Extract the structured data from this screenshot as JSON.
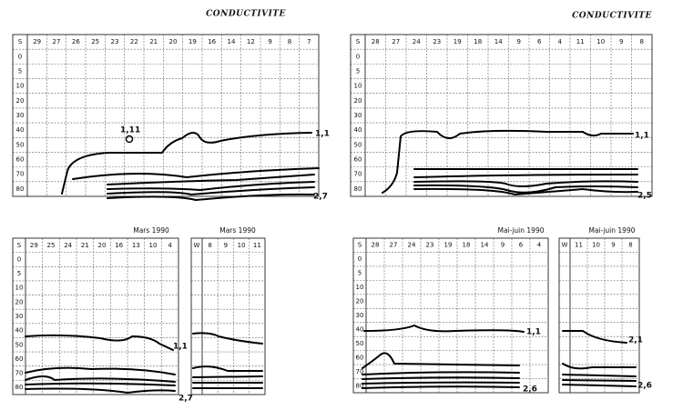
{
  "titles": [
    "CONDUCTIVITE",
    "CONDUCTIVITE"
  ],
  "panels": [
    {
      "header": null,
      "y_labels": [
        "S",
        "0",
        "5",
        "10",
        "20",
        "30",
        "40",
        "50",
        "60",
        "70",
        "80"
      ],
      "x_labels": [
        "29",
        "27",
        "26",
        "25",
        "23",
        "22",
        "21",
        "20",
        "19",
        "16",
        "14",
        "12",
        "9",
        "8",
        "7"
      ],
      "curve_labels": [
        "1,11",
        "1,1",
        "2,7"
      ]
    },
    {
      "header": null,
      "y_labels": [
        "S",
        "0",
        "5",
        "10",
        "20",
        "30",
        "40",
        "50",
        "60",
        "70",
        "80"
      ],
      "x_labels": [
        "28",
        "27",
        "24",
        "23",
        "19",
        "18",
        "14",
        "9",
        "6",
        "4",
        "11",
        "10",
        "9",
        "8"
      ],
      "curve_labels": [
        "1,1",
        "2,5"
      ]
    },
    {
      "header": "Mars 1990",
      "y_labels": [
        "S",
        "0",
        "5",
        "10",
        "20",
        "30",
        "40",
        "50",
        "60",
        "70",
        "80"
      ],
      "x_labels": [
        "29",
        "25",
        "24",
        "21",
        "20",
        "16",
        "13",
        "10",
        "4"
      ],
      "curve_labels": [
        "1,1",
        "2,7"
      ]
    },
    {
      "header": "Mars 1990",
      "y_labels": [
        "W",
        "",
        "",
        "",
        "",
        "",
        "",
        "",
        "",
        "",
        ""
      ],
      "x_labels": [
        "8",
        "9",
        "10",
        "11"
      ],
      "curve_labels": []
    },
    {
      "header": "Mai-juin 1990",
      "y_labels": [
        "S",
        "0",
        "5",
        "10",
        "20",
        "30",
        "40",
        "50",
        "60",
        "70",
        "80"
      ],
      "x_labels": [
        "28",
        "27",
        "24",
        "23",
        "19",
        "18",
        "14",
        "9",
        "6",
        "4"
      ],
      "curve_labels": [
        "1,1",
        "2,6"
      ]
    },
    {
      "header": "Mai-juin 1990",
      "y_labels": [
        "W",
        "",
        "",
        "",
        "",
        "",
        "",
        "",
        "",
        "",
        ""
      ],
      "x_labels": [
        "11",
        "10",
        "9",
        "8"
      ],
      "curve_labels": [
        "2,1",
        "2,6"
      ]
    }
  ]
}
